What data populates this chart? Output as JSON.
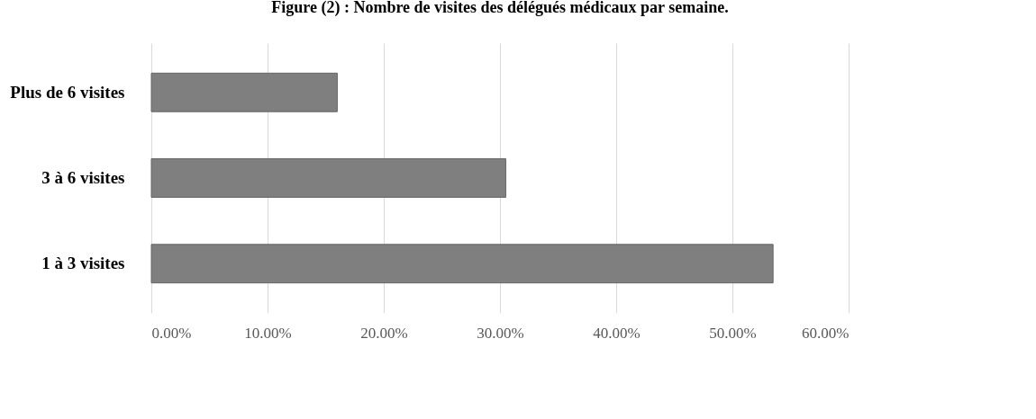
{
  "chart_data": {
    "type": "bar",
    "orientation": "horizontal",
    "title": "Figure (2) : Nombre de visites des délégués médicaux par semaine.",
    "categories": [
      "Plus de 6 visites",
      "3 à 6 visites",
      "1 à 3 visites"
    ],
    "values": [
      16,
      30.5,
      53.5
    ],
    "color": "#7f7f7f",
    "xlim": [
      0,
      60
    ],
    "xticks": [
      {
        "value": 0,
        "label": "0.00%"
      },
      {
        "value": 10,
        "label": "10.00%"
      },
      {
        "value": 20,
        "label": "20.00%"
      },
      {
        "value": 30,
        "label": "30.00%"
      },
      {
        "value": 40,
        "label": "40.00%"
      },
      {
        "value": 50,
        "label": "50.00%"
      },
      {
        "value": 60,
        "label": "60.00%"
      }
    ],
    "grid": "x"
  }
}
